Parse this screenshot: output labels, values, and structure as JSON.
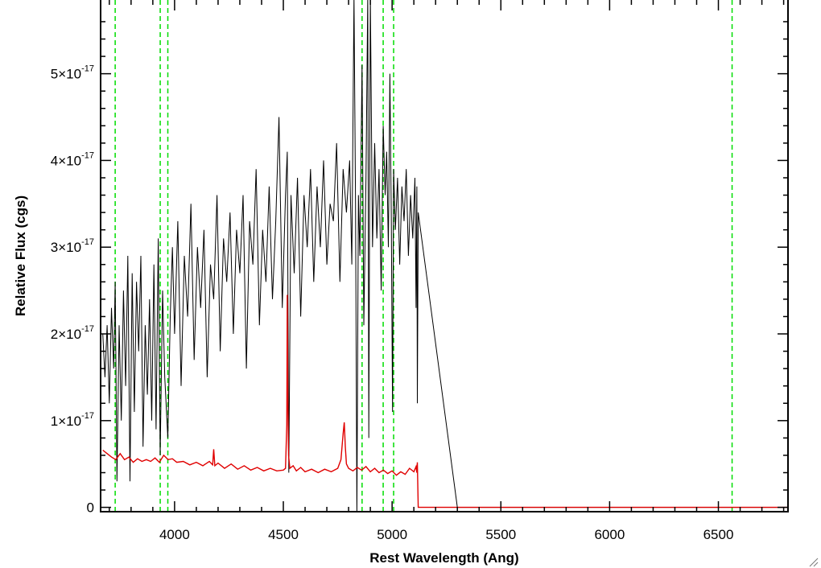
{
  "chart_data": {
    "type": "line",
    "xlabel": "Rest Wavelength (Ang)",
    "ylabel": "Relative Flux (cgs)",
    "xlim": [
      3660,
      6820
    ],
    "ylim": [
      -5e-19,
      5.85e-17
    ],
    "grid": false,
    "x_ticks": [
      4000,
      4500,
      5000,
      5500,
      6000,
      6500
    ],
    "x_tick_labels": [
      "4000",
      "4500",
      "5000",
      "5500",
      "6000",
      "6500"
    ],
    "y_ticks": [
      0,
      1e-17,
      2e-17,
      3e-17,
      4e-17,
      5e-17
    ],
    "y_tick_labels": [
      {
        "mantissa": "0",
        "exponent": ""
      },
      {
        "mantissa": "1×10",
        "exponent": "-17"
      },
      {
        "mantissa": "2×10",
        "exponent": "-17"
      },
      {
        "mantissa": "3×10",
        "exponent": "-17"
      },
      {
        "mantissa": "4×10",
        "exponent": "-17"
      },
      {
        "mantissa": "5×10",
        "exponent": "-17"
      }
    ],
    "reference_lines": {
      "color": "#00dd00",
      "style": "dashed",
      "x": [
        3727,
        3934,
        3969,
        4862,
        4959,
        5007,
        6563
      ]
    },
    "series": [
      {
        "color": "#000000",
        "x": [
          3670,
          3680,
          3690,
          3700,
          3710,
          3720,
          3727,
          3735,
          3745,
          3755,
          3765,
          3775,
          3785,
          3795,
          3805,
          3815,
          3825,
          3835,
          3845,
          3855,
          3865,
          3875,
          3885,
          3895,
          3905,
          3915,
          3925,
          3934,
          3945,
          3955,
          3969,
          3980,
          3990,
          4000,
          4015,
          4030,
          4045,
          4060,
          4075,
          4090,
          4105,
          4120,
          4135,
          4150,
          4165,
          4180,
          4195,
          4210,
          4225,
          4240,
          4255,
          4270,
          4285,
          4300,
          4315,
          4330,
          4345,
          4360,
          4375,
          4390,
          4405,
          4420,
          4435,
          4450,
          4465,
          4480,
          4495,
          4510,
          4518,
          4525,
          4535,
          4550,
          4565,
          4580,
          4595,
          4610,
          4625,
          4640,
          4655,
          4670,
          4685,
          4700,
          4715,
          4730,
          4745,
          4760,
          4775,
          4790,
          4805,
          4815,
          4825,
          4832,
          4838,
          4845,
          4852,
          4862,
          4870,
          4880,
          4888,
          4893,
          4900,
          4910,
          4920,
          4930,
          4940,
          4950,
          4959,
          4968,
          4975,
          4983,
          4990,
          4996,
          5002,
          5007,
          5015,
          5025,
          5035,
          5045,
          5055,
          5065,
          5075,
          5085,
          5095,
          5105,
          5110,
          5114,
          5116,
          5120,
          5300,
          5600,
          6000,
          6500,
          6820
        ],
        "y": [
          2e-17,
          1.5e-17,
          2.1e-17,
          1.2e-17,
          2.3e-17,
          1.6e-17,
          2.6e-17,
          3e-18,
          2.1e-17,
          1e-17,
          2.5e-17,
          1.4e-17,
          2.9e-17,
          3e-18,
          2.7e-17,
          1.1e-17,
          2.6e-17,
          1.8e-17,
          2.9e-17,
          7e-18,
          2.1e-17,
          1.3e-17,
          2.4e-17,
          1e-17,
          2.8e-17,
          9e-18,
          3.1e-17,
          6e-18,
          2.5e-17,
          1.5e-17,
          8e-18,
          2.2e-17,
          3e-17,
          2e-17,
          3.3e-17,
          1.4e-17,
          2.9e-17,
          2.2e-17,
          3.5e-17,
          1.7e-17,
          3e-17,
          2.3e-17,
          3.2e-17,
          1.5e-17,
          2.8e-17,
          2.4e-17,
          3.6e-17,
          1.8e-17,
          3.1e-17,
          2.6e-17,
          3.4e-17,
          2e-17,
          3.2e-17,
          2.7e-17,
          3.6e-17,
          1.6e-17,
          3.3e-17,
          2.8e-17,
          3.9e-17,
          2.1e-17,
          3.2e-17,
          2.6e-17,
          3.7e-17,
          2.4e-17,
          3.3e-17,
          4.5e-17,
          2.3e-17,
          3.6e-17,
          4.1e-17,
          4e-18,
          3.6e-17,
          2.7e-17,
          3.8e-17,
          2.2e-17,
          3.6e-17,
          3e-17,
          3.9e-17,
          2.6e-17,
          3.7e-17,
          3e-17,
          4e-17,
          2.8e-17,
          3.5e-17,
          3.3e-17,
          4.2e-17,
          2.6e-17,
          3.9e-17,
          3.4e-17,
          4e-17,
          2.8e-17,
          5.9e-17,
          3.5e-17,
          -1e-18,
          3.6e-17,
          2.9e-17,
          5.1e-17,
          2.1e-17,
          3.8e-17,
          5.9e-17,
          8e-18,
          5.9e-17,
          3e-17,
          4.2e-17,
          3.1e-17,
          3.9e-17,
          2.5e-17,
          4.4e-17,
          3.6e-17,
          4.1e-17,
          3e-17,
          5e-17,
          3.4e-17,
          1.1e-17,
          3.9e-17,
          3.2e-17,
          3.8e-17,
          2.8e-17,
          3.7e-17,
          3.3e-17,
          3.9e-17,
          2.9e-17,
          3.6e-17,
          3.1e-17,
          3.8e-17,
          2.3e-17,
          3.7e-17,
          1.2e-17,
          3.4e-17,
          0,
          0,
          0,
          0,
          0
        ]
      },
      {
        "color": "#e00000",
        "x": [
          3670,
          3690,
          3710,
          3730,
          3750,
          3770,
          3790,
          3810,
          3830,
          3850,
          3870,
          3890,
          3910,
          3930,
          3950,
          3970,
          3990,
          4010,
          4040,
          4070,
          4100,
          4130,
          4160,
          4175,
          4180,
          4185,
          4200,
          4230,
          4260,
          4290,
          4320,
          4350,
          4380,
          4410,
          4440,
          4470,
          4500,
          4510,
          4516,
          4518,
          4521,
          4524,
          4530,
          4545,
          4560,
          4580,
          4600,
          4630,
          4660,
          4690,
          4720,
          4750,
          4765,
          4775,
          4780,
          4785,
          4790,
          4800,
          4820,
          4840,
          4860,
          4880,
          4900,
          4920,
          4940,
          4960,
          4980,
          5000,
          5020,
          5040,
          5060,
          5080,
          5100,
          5110,
          5114,
          5116,
          5120,
          5300,
          5600,
          6000,
          6500,
          6820
        ],
        "y": [
          6.6e-18,
          6.2e-18,
          5.8e-18,
          5.5e-18,
          6.2e-18,
          5.5e-18,
          5.8e-18,
          5.2e-18,
          5.6e-18,
          5.3e-18,
          5.5e-18,
          5.3e-18,
          5.7e-18,
          5.2e-18,
          6e-18,
          5.5e-18,
          5.6e-18,
          5.2e-18,
          5.3e-18,
          4.9e-18,
          5.2e-18,
          4.8e-18,
          5.3e-18,
          4.9e-18,
          6.7e-18,
          4.8e-18,
          5.1e-18,
          4.5e-18,
          5e-18,
          4.4e-18,
          4.8e-18,
          4.3e-18,
          4.6e-18,
          4.2e-18,
          4.5e-18,
          4.2e-18,
          4.3e-18,
          4.5e-18,
          9.5e-18,
          2.45e-17,
          1.2e-17,
          6e-18,
          4.5e-18,
          4.8e-18,
          4.2e-18,
          4.6e-18,
          4.1e-18,
          4.4e-18,
          4e-18,
          4.4e-18,
          4.1e-18,
          4.5e-18,
          5.5e-18,
          8.5e-18,
          9.8e-18,
          7e-18,
          5e-18,
          4.5e-18,
          4.2e-18,
          4.6e-18,
          4.3e-18,
          4.7e-18,
          4.1e-18,
          4.5e-18,
          4e-18,
          4.3e-18,
          3.9e-18,
          4.2e-18,
          3.7e-18,
          4.1e-18,
          3.8e-18,
          4.5e-18,
          4.1e-18,
          4.7e-18,
          4e-18,
          5.2e-18,
          0,
          0,
          0,
          0,
          0,
          0
        ]
      }
    ]
  }
}
